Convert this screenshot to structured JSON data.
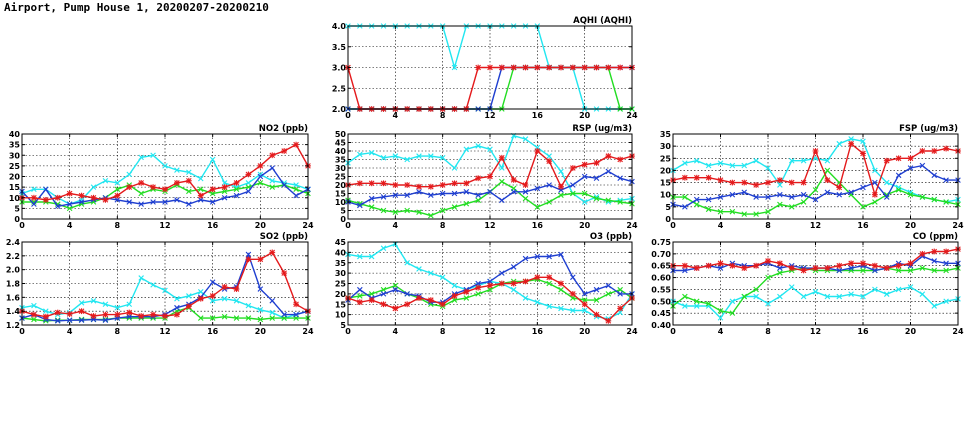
{
  "page_title": "Airport, Pump House 1, 20200207-20200210",
  "colors": {
    "red": "#e41a1c",
    "green": "#22dd22",
    "blue": "#1f3fd0",
    "cyan": "#22e6f0"
  },
  "chart_data": [
    {
      "id": "aqhi",
      "type": "line",
      "title": "AQHI (AQHI)",
      "xlim": [
        0,
        24
      ],
      "xticks": [
        0,
        4,
        8,
        12,
        16,
        20,
        24
      ],
      "ylim": [
        2.0,
        4.0
      ],
      "yticks": [
        "2.0",
        "2.5",
        "3.0",
        "3.5",
        "4.0"
      ],
      "x": [
        0,
        1,
        2,
        3,
        4,
        5,
        6,
        7,
        8,
        9,
        10,
        11,
        12,
        13,
        14,
        15,
        16,
        17,
        18,
        19,
        20,
        21,
        22,
        23,
        24
      ],
      "series": [
        {
          "color": "cyan",
          "marker": "x",
          "values": [
            4,
            4,
            4,
            4,
            4,
            4,
            4,
            4,
            4,
            3,
            4,
            4,
            4,
            4,
            4,
            4,
            4,
            3,
            3,
            3,
            2,
            2,
            2,
            2,
            2
          ]
        },
        {
          "color": "green",
          "marker": "x",
          "values": [
            2,
            2,
            2,
            2,
            2,
            2,
            2,
            2,
            2,
            2,
            2,
            2,
            2,
            2,
            3,
            3,
            3,
            3,
            3,
            3,
            3,
            3,
            3,
            2,
            2
          ]
        },
        {
          "color": "blue",
          "marker": "x",
          "values": [
            2,
            2,
            2,
            2,
            2,
            2,
            2,
            2,
            2,
            2,
            2,
            2,
            2,
            3,
            3,
            3,
            3,
            3,
            3,
            3,
            3,
            3,
            3,
            3,
            3
          ]
        },
        {
          "color": "red",
          "marker": "*",
          "values": [
            3,
            2,
            2,
            2,
            2,
            2,
            2,
            2,
            2,
            2,
            2,
            3,
            3,
            3,
            3,
            3,
            3,
            3,
            3,
            3,
            3,
            3,
            3,
            3,
            3
          ]
        }
      ]
    },
    {
      "id": "no2",
      "type": "line",
      "title": "NO2 (ppb)",
      "xlim": [
        0,
        24
      ],
      "xticks": [
        0,
        4,
        8,
        12,
        16,
        20,
        24
      ],
      "ylim": [
        0,
        40
      ],
      "yticks": [
        "0",
        "5",
        "10",
        "15",
        "20",
        "25",
        "30",
        "35",
        "40"
      ],
      "x": [
        0,
        1,
        2,
        3,
        4,
        5,
        6,
        7,
        8,
        9,
        10,
        11,
        12,
        13,
        14,
        15,
        16,
        17,
        18,
        19,
        20,
        21,
        22,
        23,
        24
      ],
      "series": [
        {
          "color": "cyan",
          "marker": "x",
          "values": [
            12,
            14,
            14,
            10,
            7,
            9,
            15,
            18,
            17,
            21,
            29,
            30,
            25,
            23,
            22,
            19,
            28,
            17,
            15,
            17,
            21,
            18,
            17,
            16,
            14
          ]
        },
        {
          "color": "green",
          "marker": "x",
          "values": [
            8,
            8,
            8,
            7,
            5,
            7,
            8,
            10,
            14,
            16,
            12,
            14,
            13,
            16,
            13,
            14,
            12,
            13,
            14,
            15,
            17,
            15,
            16,
            14,
            12
          ]
        },
        {
          "color": "blue",
          "marker": "x",
          "values": [
            13,
            7,
            14,
            6,
            7,
            8,
            9,
            10,
            9,
            8,
            7,
            8,
            8,
            9,
            7,
            9,
            8,
            10,
            11,
            13,
            20,
            24,
            16,
            11,
            14
          ]
        },
        {
          "color": "red",
          "marker": "*",
          "values": [
            10,
            10,
            9,
            10,
            12,
            11,
            10,
            9,
            11,
            15,
            17,
            15,
            14,
            17,
            18,
            11,
            14,
            15,
            17,
            21,
            25,
            30,
            32,
            35,
            25
          ]
        }
      ]
    },
    {
      "id": "rsp",
      "type": "line",
      "title": "RSP (ug/m3)",
      "xlim": [
        0,
        24
      ],
      "xticks": [
        0,
        4,
        8,
        12,
        16,
        20,
        24
      ],
      "ylim": [
        0,
        50
      ],
      "yticks": [
        "0",
        "5",
        "10",
        "15",
        "20",
        "25",
        "30",
        "35",
        "40",
        "45",
        "50"
      ],
      "x": [
        0,
        1,
        2,
        3,
        4,
        5,
        6,
        7,
        8,
        9,
        10,
        11,
        12,
        13,
        14,
        15,
        16,
        17,
        18,
        19,
        20,
        21,
        22,
        23,
        24
      ],
      "series": [
        {
          "color": "cyan",
          "marker": "x",
          "values": [
            33,
            38,
            39,
            36,
            37,
            35,
            37,
            37,
            36,
            30,
            41,
            43,
            41,
            30,
            49,
            47,
            42,
            37,
            28,
            15,
            10,
            13,
            10,
            11,
            12
          ]
        },
        {
          "color": "green",
          "marker": "x",
          "values": [
            11,
            9,
            7,
            5,
            4,
            5,
            4,
            2,
            5,
            7,
            9,
            11,
            16,
            22,
            18,
            12,
            7,
            10,
            14,
            15,
            15,
            12,
            11,
            10,
            9
          ]
        },
        {
          "color": "blue",
          "marker": "x",
          "values": [
            10,
            8,
            12,
            13,
            14,
            14,
            16,
            14,
            15,
            15,
            16,
            14,
            16,
            11,
            16,
            16,
            18,
            20,
            17,
            20,
            25,
            24,
            28,
            24,
            22
          ]
        },
        {
          "color": "red",
          "marker": "*",
          "values": [
            20,
            21,
            21,
            21,
            20,
            20,
            19,
            19,
            20,
            21,
            21,
            24,
            25,
            36,
            23,
            20,
            40,
            34,
            19,
            30,
            32,
            33,
            37,
            35,
            37
          ]
        }
      ]
    },
    {
      "id": "fsp",
      "type": "line",
      "title": "FSP (ug/m3)",
      "xlim": [
        0,
        24
      ],
      "xticks": [
        0,
        4,
        8,
        12,
        16,
        20,
        24
      ],
      "ylim": [
        0,
        35
      ],
      "yticks": [
        "0",
        "5",
        "10",
        "15",
        "20",
        "25",
        "30",
        "35"
      ],
      "x": [
        0,
        1,
        2,
        3,
        4,
        5,
        6,
        7,
        8,
        9,
        10,
        11,
        12,
        13,
        14,
        15,
        16,
        17,
        18,
        19,
        20,
        21,
        22,
        23,
        24
      ],
      "series": [
        {
          "color": "cyan",
          "marker": "x",
          "values": [
            20,
            23,
            24,
            22,
            23,
            22,
            22,
            24,
            21,
            14,
            24,
            24,
            25,
            24,
            31,
            33,
            32,
            20,
            15,
            13,
            11,
            9,
            8,
            7,
            8
          ]
        },
        {
          "color": "green",
          "marker": "x",
          "values": [
            9,
            9,
            6,
            4,
            3,
            3,
            2,
            2,
            3,
            6,
            5,
            7,
            12,
            20,
            15,
            10,
            5,
            7,
            10,
            12,
            10,
            9,
            8,
            7,
            6
          ]
        },
        {
          "color": "blue",
          "marker": "x",
          "values": [
            6,
            5,
            8,
            8,
            9,
            10,
            11,
            9,
            9,
            10,
            9,
            10,
            8,
            11,
            10,
            11,
            13,
            15,
            9,
            18,
            21,
            22,
            18,
            16,
            16
          ]
        },
        {
          "color": "red",
          "marker": "*",
          "values": [
            16,
            17,
            17,
            17,
            16,
            15,
            15,
            14,
            15,
            16,
            15,
            15,
            28,
            16,
            13,
            31,
            27,
            10,
            24,
            25,
            25,
            28,
            28,
            29,
            28
          ]
        }
      ]
    },
    {
      "id": "so2",
      "type": "line",
      "title": "SO2 (ppb)",
      "xlim": [
        0,
        24
      ],
      "xticks": [
        0,
        4,
        8,
        12,
        16,
        20,
        24
      ],
      "ylim": [
        1.2,
        2.4
      ],
      "yticks": [
        "1.2",
        "1.4",
        "1.6",
        "1.8",
        "2.0",
        "2.2",
        "2.4"
      ],
      "x": [
        0,
        1,
        2,
        3,
        4,
        5,
        6,
        7,
        8,
        9,
        10,
        11,
        12,
        13,
        14,
        15,
        16,
        17,
        18,
        19,
        20,
        21,
        22,
        23,
        24
      ],
      "series": [
        {
          "color": "cyan",
          "marker": "x",
          "values": [
            1.45,
            1.48,
            1.4,
            1.35,
            1.38,
            1.52,
            1.55,
            1.5,
            1.45,
            1.5,
            1.88,
            1.78,
            1.7,
            1.58,
            1.62,
            1.68,
            1.55,
            1.58,
            1.55,
            1.48,
            1.42,
            1.38,
            1.3,
            1.35,
            1.4
          ]
        },
        {
          "color": "green",
          "marker": "x",
          "values": [
            1.3,
            1.28,
            1.26,
            1.27,
            1.27,
            1.28,
            1.28,
            1.28,
            1.3,
            1.3,
            1.3,
            1.3,
            1.3,
            1.4,
            1.45,
            1.3,
            1.3,
            1.32,
            1.3,
            1.3,
            1.28,
            1.3,
            1.3,
            1.3,
            1.3
          ]
        },
        {
          "color": "blue",
          "marker": "x",
          "values": [
            1.3,
            1.35,
            1.28,
            1.26,
            1.27,
            1.27,
            1.28,
            1.27,
            1.3,
            1.32,
            1.32,
            1.32,
            1.35,
            1.45,
            1.5,
            1.6,
            1.82,
            1.72,
            1.75,
            2.22,
            1.72,
            1.55,
            1.35,
            1.35,
            1.4
          ]
        },
        {
          "color": "red",
          "marker": "*",
          "values": [
            1.4,
            1.35,
            1.32,
            1.38,
            1.36,
            1.4,
            1.33,
            1.35,
            1.35,
            1.38,
            1.33,
            1.35,
            1.33,
            1.35,
            1.47,
            1.58,
            1.62,
            1.75,
            1.72,
            2.15,
            2.15,
            2.25,
            1.95,
            1.5,
            1.4
          ]
        }
      ]
    },
    {
      "id": "o3",
      "type": "line",
      "title": "O3 (ppb)",
      "xlim": [
        0,
        24
      ],
      "xticks": [
        0,
        4,
        8,
        12,
        16,
        20,
        24
      ],
      "ylim": [
        5,
        45
      ],
      "yticks": [
        "5",
        "10",
        "15",
        "20",
        "25",
        "30",
        "35",
        "40",
        "45"
      ],
      "x": [
        0,
        1,
        2,
        3,
        4,
        5,
        6,
        7,
        8,
        9,
        10,
        11,
        12,
        13,
        14,
        15,
        16,
        17,
        18,
        19,
        20,
        21,
        22,
        23,
        24
      ],
      "series": [
        {
          "color": "cyan",
          "marker": "x",
          "values": [
            39,
            38,
            38,
            42,
            44,
            35,
            32,
            30,
            28,
            24,
            22,
            24,
            26,
            25,
            22,
            18,
            16,
            14,
            13,
            12,
            12,
            9,
            8,
            11,
            20
          ]
        },
        {
          "color": "green",
          "marker": "x",
          "values": [
            18,
            19,
            20,
            22,
            24,
            20,
            18,
            15,
            14,
            17,
            18,
            20,
            22,
            25,
            26,
            26,
            27,
            25,
            22,
            18,
            17,
            17,
            20,
            22,
            18
          ]
        },
        {
          "color": "blue",
          "marker": "x",
          "values": [
            17,
            22,
            18,
            20,
            22,
            20,
            19,
            16,
            16,
            20,
            22,
            25,
            26,
            30,
            33,
            37,
            38,
            38,
            39,
            28,
            20,
            22,
            24,
            20,
            20
          ]
        },
        {
          "color": "red",
          "marker": "*",
          "values": [
            18,
            16,
            17,
            15,
            13,
            15,
            18,
            17,
            15,
            19,
            21,
            23,
            24,
            25,
            25,
            26,
            28,
            28,
            25,
            20,
            15,
            10,
            7,
            13,
            18
          ]
        }
      ]
    },
    {
      "id": "co",
      "type": "line",
      "title": "CO (ppm)",
      "xlim": [
        0,
        24
      ],
      "xticks": [
        0,
        4,
        8,
        12,
        16,
        20,
        24
      ],
      "ylim": [
        0.4,
        0.75
      ],
      "yticks": [
        "0.40",
        "0.45",
        "0.50",
        "0.55",
        "0.60",
        "0.65",
        "0.70",
        "0.75"
      ],
      "x": [
        0,
        1,
        2,
        3,
        4,
        5,
        6,
        7,
        8,
        9,
        10,
        11,
        12,
        13,
        14,
        15,
        16,
        17,
        18,
        19,
        20,
        21,
        22,
        23,
        24
      ],
      "series": [
        {
          "color": "cyan",
          "marker": "x",
          "values": [
            0.5,
            0.48,
            0.48,
            0.48,
            0.43,
            0.5,
            0.52,
            0.52,
            0.49,
            0.52,
            0.56,
            0.52,
            0.54,
            0.52,
            0.52,
            0.53,
            0.52,
            0.55,
            0.53,
            0.55,
            0.56,
            0.53,
            0.48,
            0.5,
            0.51
          ]
        },
        {
          "color": "green",
          "marker": "x",
          "values": [
            0.48,
            0.52,
            0.5,
            0.49,
            0.46,
            0.45,
            0.52,
            0.55,
            0.6,
            0.62,
            0.63,
            0.64,
            0.63,
            0.63,
            0.63,
            0.63,
            0.63,
            0.63,
            0.64,
            0.63,
            0.63,
            0.64,
            0.63,
            0.63,
            0.64
          ]
        },
        {
          "color": "blue",
          "marker": "x",
          "values": [
            0.63,
            0.63,
            0.64,
            0.65,
            0.64,
            0.66,
            0.65,
            0.65,
            0.66,
            0.64,
            0.65,
            0.64,
            0.64,
            0.64,
            0.63,
            0.64,
            0.65,
            0.63,
            0.64,
            0.66,
            0.65,
            0.69,
            0.67,
            0.66,
            0.66
          ]
        },
        {
          "color": "red",
          "marker": "*",
          "values": [
            0.65,
            0.65,
            0.64,
            0.65,
            0.66,
            0.65,
            0.64,
            0.65,
            0.67,
            0.66,
            0.64,
            0.63,
            0.64,
            0.64,
            0.65,
            0.66,
            0.66,
            0.65,
            0.64,
            0.65,
            0.66,
            0.7,
            0.71,
            0.71,
            0.72
          ]
        }
      ]
    }
  ]
}
